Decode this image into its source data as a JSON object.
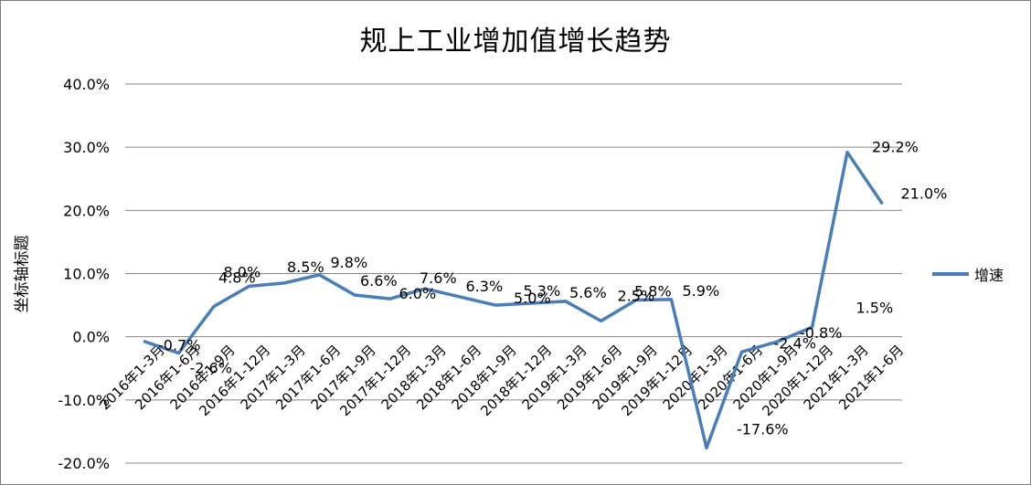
{
  "chart_data": {
    "type": "line",
    "title": "规上工业增加值增长趋势",
    "ylabel": "坐标轴标题",
    "xlabel": "",
    "ylim": [
      -20,
      40
    ],
    "yticks": [
      -20,
      -10,
      0,
      10,
      20,
      30,
      40
    ],
    "ytick_labels": [
      "-20.0%",
      "-10.0%",
      "0.0%",
      "10.0%",
      "20.0%",
      "30.0%",
      "40.0%"
    ],
    "grid": true,
    "legend_position": "right",
    "categories": [
      "2016年1-3月",
      "2016年1-6月",
      "2016年1-9月",
      "2016年1-12月",
      "2017年1-3月",
      "2017年1-6月",
      "2017年1-9月",
      "2017年1-12月",
      "2018年1-3月",
      "2018年1-6月",
      "2018年1-9月",
      "2018年1-12月",
      "2019年1-3月",
      "2019年1-6月",
      "2019年1-9月",
      "2019年1-12月",
      "2020年1-3月",
      "2020年1-6月",
      "2020年1-9月",
      "2020年1-12月",
      "2021年1-3月",
      "2021年1-6月"
    ],
    "series": [
      {
        "name": "增速",
        "color": "#4a7ebb",
        "values": [
          -0.7,
          -2.6,
          4.8,
          8.0,
          8.5,
          9.8,
          6.6,
          6.0,
          7.6,
          6.3,
          5.0,
          5.3,
          5.6,
          2.5,
          5.8,
          5.9,
          -17.6,
          -2.4,
          -0.8,
          1.5,
          29.2,
          21.0
        ],
        "labels": [
          "-0.7%",
          "-2.6%",
          "4.8%",
          "8.0%",
          "8.5%",
          "9.8%",
          "6.6%",
          "6.0%",
          "7.6%",
          "6.3%",
          "5.0%",
          "5.3%",
          "5.6%",
          "2.5%",
          "5.8%",
          "5.9%",
          "-17.6%",
          "-2.4%",
          "-0.8%",
          "1.5%",
          "29.2%",
          "21.0%"
        ]
      }
    ]
  }
}
